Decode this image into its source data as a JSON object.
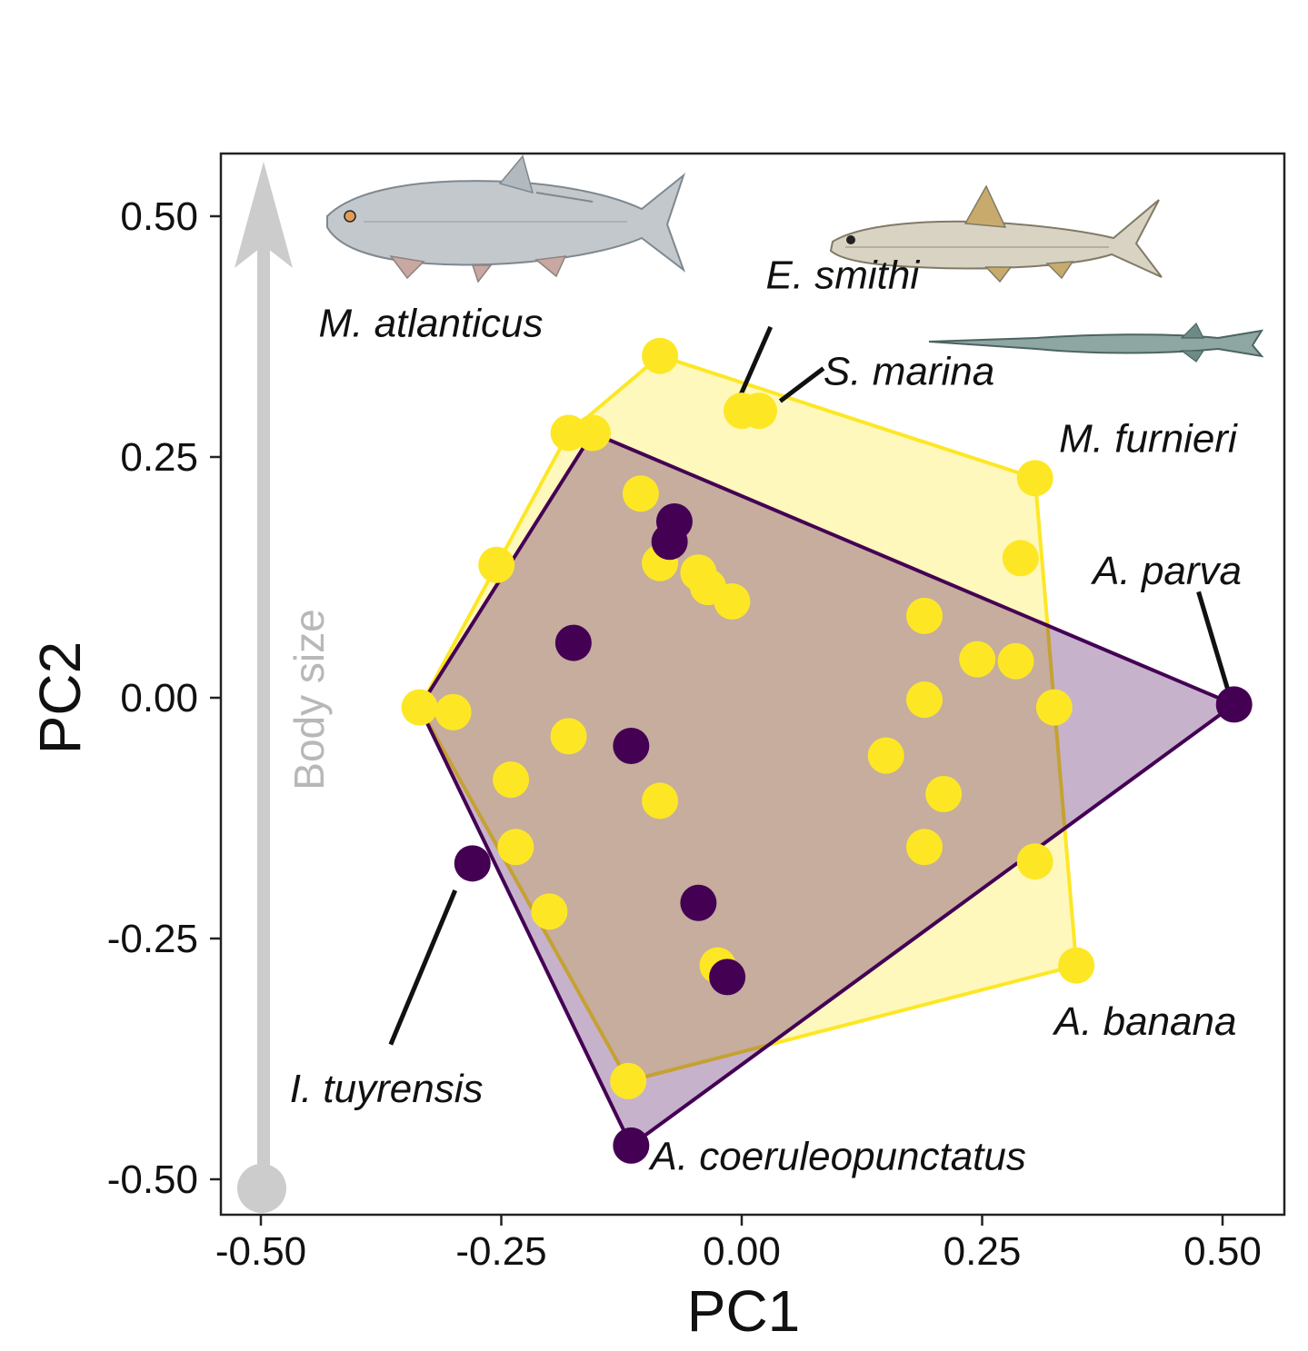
{
  "chart_data": {
    "type": "scatter",
    "xlabel": "PC1",
    "ylabel": "PC2",
    "xlim": [
      -0.54,
      0.57
    ],
    "ylim": [
      -0.54,
      0.565
    ],
    "xticks": [
      -0.5,
      -0.25,
      0.0,
      0.25,
      0.5
    ],
    "yticks": [
      -0.5,
      -0.25,
      0.0,
      0.25,
      0.5
    ],
    "xtick_labels": [
      "-0.50",
      "-0.25",
      "0.00",
      "0.25",
      "0.50"
    ],
    "ytick_labels": [
      "-0.50",
      "-0.25",
      "0.00",
      "0.25",
      "0.50"
    ],
    "grid": false,
    "colors": {
      "yellow": "#fde725",
      "purple": "#440154",
      "arrow": "#cccccc"
    },
    "annotation_arrow": {
      "label": "Body size",
      "from_y": -0.51,
      "to_y": 0.47,
      "x": -0.5
    },
    "series": [
      {
        "color": "#fde725",
        "points": [
          [
            -0.085,
            0.355
          ],
          [
            -0.155,
            0.275
          ],
          [
            -0.18,
            0.275
          ],
          [
            -0.0,
            0.298
          ],
          [
            0.018,
            0.298
          ],
          [
            0.305,
            0.228
          ],
          [
            -0.105,
            0.212
          ],
          [
            -0.255,
            0.138
          ],
          [
            -0.085,
            0.14
          ],
          [
            -0.045,
            0.13
          ],
          [
            -0.035,
            0.115
          ],
          [
            -0.01,
            0.1
          ],
          [
            0.29,
            0.145
          ],
          [
            0.19,
            0.085
          ],
          [
            0.245,
            0.04
          ],
          [
            0.285,
            0.038
          ],
          [
            -0.335,
            -0.01
          ],
          [
            -0.3,
            -0.015
          ],
          [
            0.19,
            -0.002
          ],
          [
            0.325,
            -0.01
          ],
          [
            -0.18,
            -0.04
          ],
          [
            0.15,
            -0.06
          ],
          [
            -0.24,
            -0.085
          ],
          [
            -0.085,
            -0.107
          ],
          [
            0.21,
            -0.1
          ],
          [
            -0.235,
            -0.155
          ],
          [
            0.19,
            -0.155
          ],
          [
            0.305,
            -0.17
          ],
          [
            -0.2,
            -0.222
          ],
          [
            -0.025,
            -0.278
          ],
          [
            0.348,
            -0.278
          ],
          [
            -0.118,
            -0.398
          ]
        ],
        "hull": [
          [
            -0.085,
            0.355
          ],
          [
            0.305,
            0.228
          ],
          [
            0.348,
            -0.278
          ],
          [
            -0.118,
            -0.398
          ],
          [
            -0.335,
            -0.01
          ],
          [
            -0.18,
            0.275
          ]
        ]
      },
      {
        "color": "#440154",
        "points": [
          [
            -0.07,
            0.183
          ],
          [
            -0.075,
            0.162
          ],
          [
            -0.175,
            0.057
          ],
          [
            -0.115,
            -0.05
          ],
          [
            0.512,
            -0.007
          ],
          [
            -0.28,
            -0.172
          ],
          [
            -0.045,
            -0.213
          ],
          [
            -0.015,
            -0.29
          ],
          [
            -0.115,
            -0.465
          ]
        ],
        "hull": [
          [
            -0.155,
            0.275
          ],
          [
            0.512,
            -0.007
          ],
          [
            -0.115,
            -0.465
          ],
          [
            -0.335,
            -0.01
          ]
        ]
      }
    ],
    "annotations": [
      {
        "text": "M. atlanticus",
        "anchor": [
          -0.44,
          0.375
        ]
      },
      {
        "text": "E. smithi",
        "anchor": [
          0.025,
          0.425
        ],
        "line": [
          [
            0.03,
            0.385
          ],
          [
            -0.003,
            0.31
          ]
        ]
      },
      {
        "text": "S. marina",
        "anchor": [
          0.085,
          0.325
        ],
        "line": [
          [
            0.085,
            0.342
          ],
          [
            0.04,
            0.308
          ]
        ]
      },
      {
        "text": "M. furnieri",
        "anchor": [
          0.33,
          0.255
        ]
      },
      {
        "text": "A. parva",
        "anchor": [
          0.365,
          0.118
        ],
        "line": [
          [
            0.475,
            0.11
          ],
          [
            0.505,
            0.01
          ]
        ]
      },
      {
        "text": "A. banana",
        "anchor": [
          0.325,
          -0.35
        ]
      },
      {
        "text": "I. tuyrensis",
        "anchor": [
          -0.47,
          -0.42
        ],
        "line": [
          [
            -0.365,
            -0.36
          ],
          [
            -0.298,
            -0.2
          ]
        ]
      },
      {
        "text": "A. coeruleopunctatus",
        "anchor": [
          -0.095,
          -0.49
        ]
      }
    ],
    "fish_icons": [
      "tarpon",
      "bonefish",
      "needlefish"
    ]
  }
}
